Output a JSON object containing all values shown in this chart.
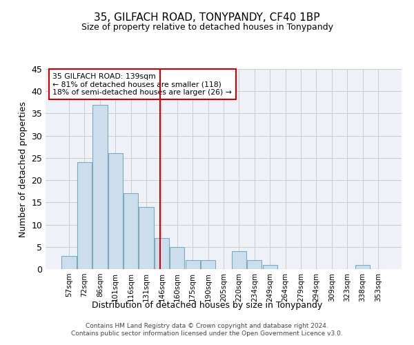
{
  "title": "35, GILFACH ROAD, TONYPANDY, CF40 1BP",
  "subtitle": "Size of property relative to detached houses in Tonypandy",
  "xlabel": "Distribution of detached houses by size in Tonypandy",
  "ylabel": "Number of detached properties",
  "bar_color": "#ccdded",
  "bar_edge_color": "#7aaabe",
  "background_color": "#eef2f8",
  "grid_color": "#cccccc",
  "categories": [
    "57sqm",
    "72sqm",
    "86sqm",
    "101sqm",
    "116sqm",
    "131sqm",
    "146sqm",
    "160sqm",
    "175sqm",
    "190sqm",
    "205sqm",
    "220sqm",
    "234sqm",
    "249sqm",
    "264sqm",
    "279sqm",
    "294sqm",
    "309sqm",
    "323sqm",
    "338sqm",
    "353sqm"
  ],
  "values": [
    3,
    24,
    37,
    26,
    17,
    14,
    7,
    5,
    2,
    2,
    0,
    4,
    2,
    1,
    0,
    0,
    0,
    0,
    0,
    1,
    0
  ],
  "ylim": [
    0,
    45
  ],
  "yticks": [
    0,
    5,
    10,
    15,
    20,
    25,
    30,
    35,
    40,
    45
  ],
  "property_line_x": 5.9,
  "property_line_color": "#cc0000",
  "annotation_text": "35 GILFACH ROAD: 139sqm\n← 81% of detached houses are smaller (118)\n18% of semi-detached houses are larger (26) →",
  "annotation_box_color": "#cc0000",
  "footer_text": "Contains HM Land Registry data © Crown copyright and database right 2024.\nContains public sector information licensed under the Open Government Licence v3.0."
}
